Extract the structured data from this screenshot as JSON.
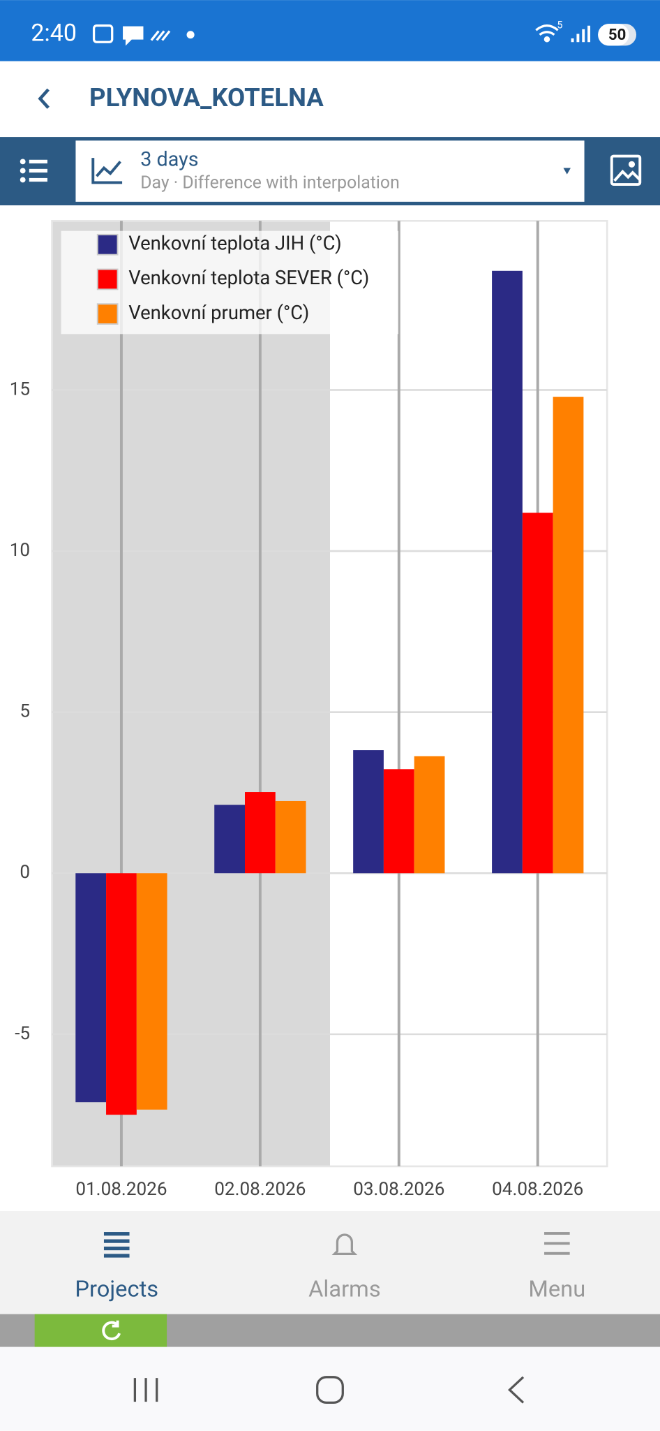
{
  "status_bar": {
    "time": "2:40",
    "wifi_label": "5",
    "battery": "50"
  },
  "header": {
    "title": "PLYNOVA_KOTELNA"
  },
  "toolbar": {
    "range": "3 days",
    "subtitle": "Day · Difference with interpolation"
  },
  "chart_data": {
    "type": "bar",
    "categories": [
      "01.08.2026",
      "02.08.2026",
      "03.08.2026",
      "04.08.2026"
    ],
    "series": [
      {
        "name": "Venkovní teplota JIH (°C)",
        "color": "#2b2a85",
        "values": [
          -7.11,
          2.12,
          3.82,
          18.7
        ]
      },
      {
        "name": "Venkovní teplota SEVER (°C)",
        "color": "#ff0000",
        "values": [
          -7.5,
          2.52,
          3.23,
          11.19
        ]
      },
      {
        "name": "Venkovní prumer (°C)",
        "color": "#ff8000",
        "values": [
          -7.34,
          2.24,
          3.63,
          14.79
        ]
      }
    ],
    "ylim": [
      -9.1,
      20.25
    ],
    "yticks": [
      -5,
      0,
      5,
      10,
      15
    ],
    "grid": true,
    "legend": "top-left"
  },
  "nav": {
    "items": [
      "Projects",
      "Alarms",
      "Menu"
    ]
  }
}
